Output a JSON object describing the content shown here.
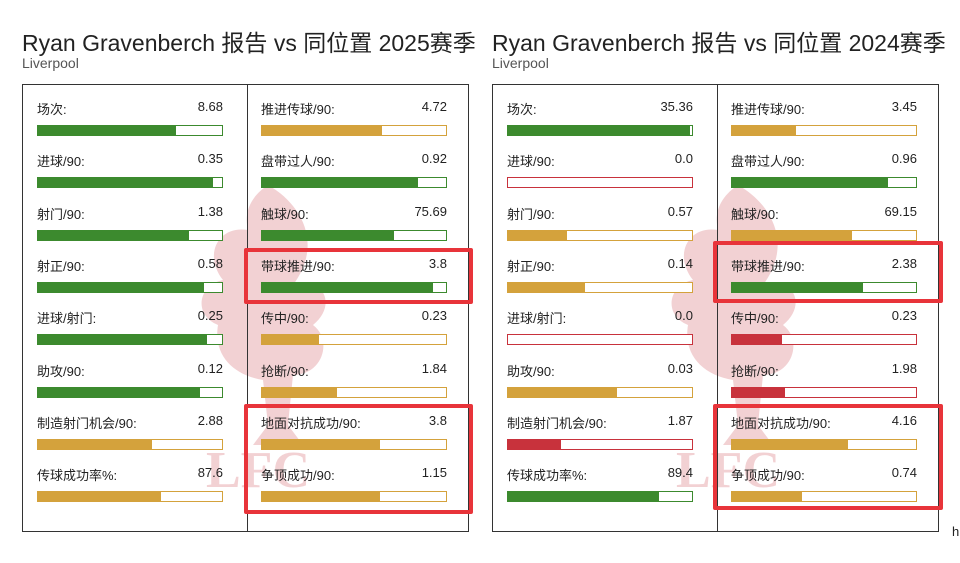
{
  "panels": [
    {
      "title": "Ryan Gravenberch 报告 vs 同位置 2025赛季",
      "club": "Liverpool",
      "left_stats": [
        {
          "label": "场次:",
          "value": "8.68",
          "fill": 0.75,
          "color": "#3c8a2e"
        },
        {
          "label": "进球/90:",
          "value": "0.35",
          "fill": 0.95,
          "color": "#3c8a2e"
        },
        {
          "label": "射门/90:",
          "value": "1.38",
          "fill": 0.82,
          "color": "#3c8a2e"
        },
        {
          "label": "射正/90:",
          "value": "0.58",
          "fill": 0.9,
          "color": "#3c8a2e"
        },
        {
          "label": "进球/射门:",
          "value": "0.25",
          "fill": 0.92,
          "color": "#3c8a2e"
        },
        {
          "label": "助攻/90:",
          "value": "0.12",
          "fill": 0.88,
          "color": "#3c8a2e"
        },
        {
          "label": "制造射门机会/90:",
          "value": "2.88",
          "fill": 0.62,
          "color": "#d4a23c"
        },
        {
          "label": "传球成功率%:",
          "value": "87.6",
          "fill": 0.67,
          "color": "#d4a23c"
        }
      ],
      "right_stats": [
        {
          "label": "推进传球/90:",
          "value": "4.72",
          "fill": 0.65,
          "color": "#d4a23c"
        },
        {
          "label": "盘带过人/90:",
          "value": "0.92",
          "fill": 0.85,
          "color": "#3c8a2e"
        },
        {
          "label": "触球/90:",
          "value": "75.69",
          "fill": 0.72,
          "color": "#3c8a2e"
        },
        {
          "label": "带球推进/90:",
          "value": "3.8",
          "fill": 0.93,
          "color": "#3c8a2e"
        },
        {
          "label": "传中/90:",
          "value": "0.23",
          "fill": 0.31,
          "color": "#d4a23c"
        },
        {
          "label": "抢断/90:",
          "value": "1.84",
          "fill": 0.41,
          "color": "#d4a23c"
        },
        {
          "label": "地面对抗成功/90:",
          "value": "3.8",
          "fill": 0.64,
          "color": "#d4a23c"
        },
        {
          "label": "争顶成功/90:",
          "value": "1.15",
          "fill": 0.64,
          "color": "#d4a23c"
        }
      ]
    },
    {
      "title": "Ryan Gravenberch 报告 vs 同位置 2024赛季",
      "club": "Liverpool",
      "left_stats": [
        {
          "label": "场次:",
          "value": "35.36",
          "fill": 0.99,
          "color": "#3c8a2e"
        },
        {
          "label": "进球/90:",
          "value": "0.0",
          "fill": 0.0,
          "color": "#c8323c"
        },
        {
          "label": "射门/90:",
          "value": "0.57",
          "fill": 0.32,
          "color": "#d4a23c"
        },
        {
          "label": "射正/90:",
          "value": "0.14",
          "fill": 0.42,
          "color": "#d4a23c"
        },
        {
          "label": "进球/射门:",
          "value": "0.0",
          "fill": 0.0,
          "color": "#c8323c"
        },
        {
          "label": "助攻/90:",
          "value": "0.03",
          "fill": 0.59,
          "color": "#d4a23c"
        },
        {
          "label": "制造射门机会/90:",
          "value": "1.87",
          "fill": 0.29,
          "color": "#c8323c"
        },
        {
          "label": "传球成功率%:",
          "value": "89.4",
          "fill": 0.82,
          "color": "#3c8a2e"
        }
      ],
      "right_stats": [
        {
          "label": "推进传球/90:",
          "value": "3.45",
          "fill": 0.35,
          "color": "#d4a23c"
        },
        {
          "label": "盘带过人/90:",
          "value": "0.96",
          "fill": 0.85,
          "color": "#3c8a2e"
        },
        {
          "label": "触球/90:",
          "value": "69.15",
          "fill": 0.65,
          "color": "#d4a23c"
        },
        {
          "label": "带球推进/90:",
          "value": "2.38",
          "fill": 0.71,
          "color": "#3c8a2e"
        },
        {
          "label": "传中/90:",
          "value": "0.23",
          "fill": 0.27,
          "color": "#c8323c"
        },
        {
          "label": "抢断/90:",
          "value": "1.98",
          "fill": 0.29,
          "color": "#c8323c"
        },
        {
          "label": "地面对抗成功/90:",
          "value": "4.16",
          "fill": 0.63,
          "color": "#d4a23c"
        },
        {
          "label": "争顶成功/90:",
          "value": "0.74",
          "fill": 0.38,
          "color": "#d4a23c"
        }
      ]
    }
  ],
  "stray_char": "h",
  "crest_text": "LFC",
  "colors": {
    "green": "#3c8a2e",
    "gold": "#d4a23c",
    "red": "#c8323c",
    "highlight": "#e8343a",
    "crest": "#c8323c"
  }
}
